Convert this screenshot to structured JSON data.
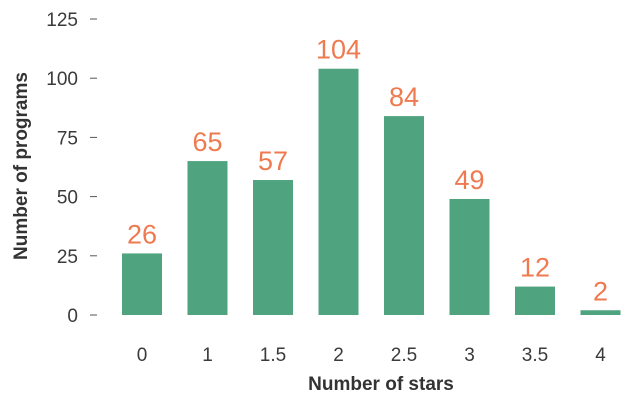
{
  "chart_data": {
    "type": "bar",
    "categories": [
      "0",
      "1",
      "1.5",
      "2",
      "2.5",
      "3",
      "3.5",
      "4"
    ],
    "values": [
      26,
      65,
      57,
      104,
      84,
      49,
      12,
      2
    ],
    "data_labels": [
      "26",
      "65",
      "57",
      "104",
      "84",
      "49",
      "12",
      "2"
    ],
    "title": "",
    "xlabel": "Number of stars",
    "ylabel": "Number of programs",
    "ylim": [
      0,
      125
    ],
    "yticks": [
      0,
      25,
      50,
      75,
      100,
      125
    ],
    "ytick_labels": [
      "0",
      "25",
      "50",
      "75",
      "100",
      "125"
    ],
    "grid": false,
    "legend": "none",
    "colors": {
      "bar": "#4fa37f",
      "data_label": "#ef7a4f",
      "text": "#3a3a3a"
    }
  }
}
